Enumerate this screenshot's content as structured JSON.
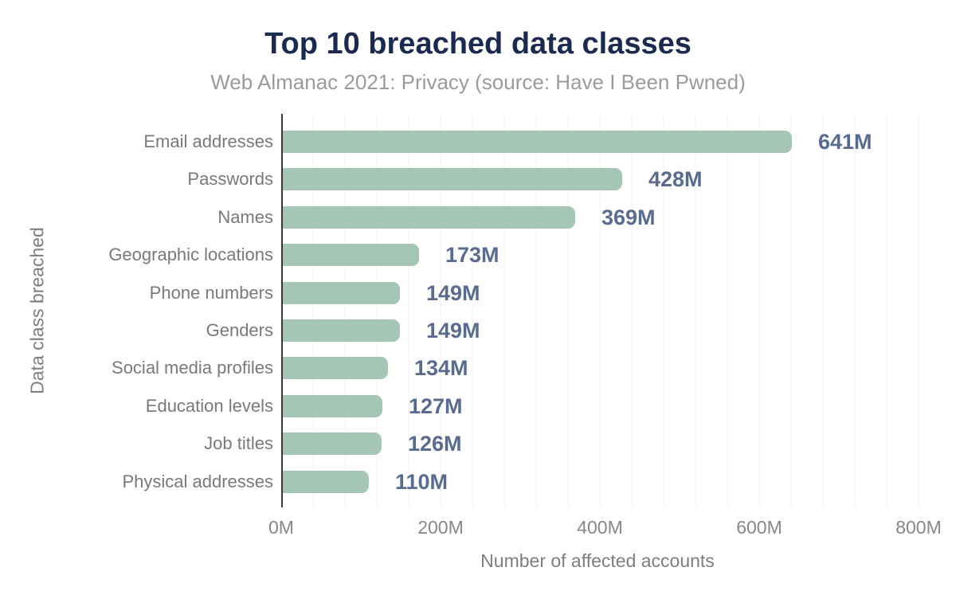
{
  "chart_data": {
    "type": "bar",
    "orientation": "horizontal",
    "title": "Top 10 breached data classes",
    "subtitle": "Web Almanac 2021: Privacy (source: Have I Been Pwned)",
    "categories": [
      "Email addresses",
      "Passwords",
      "Names",
      "Geographic locations",
      "Phone numbers",
      "Genders",
      "Social media profiles",
      "Education levels",
      "Job titles",
      "Physical addresses"
    ],
    "values": [
      641,
      428,
      369,
      173,
      149,
      149,
      134,
      127,
      126,
      110
    ],
    "value_labels": [
      "641M",
      "428M",
      "369M",
      "173M",
      "149M",
      "149M",
      "134M",
      "127M",
      "126M",
      "110M"
    ],
    "xlabel": "Number of affected accounts",
    "ylabel": "Data class breached",
    "x_ticks": [
      {
        "value": 0,
        "label": "0M"
      },
      {
        "value": 200,
        "label": "200M"
      },
      {
        "value": 400,
        "label": "400M"
      },
      {
        "value": 600,
        "label": "600M"
      },
      {
        "value": 800,
        "label": "800M"
      }
    ],
    "xlim": [
      0,
      800
    ],
    "grid": "faint vertical minor gridlines every 40M",
    "legend": "none",
    "colors": {
      "bar": "#a5c6b5",
      "title": "#1b2b4d",
      "subtitle": "#9b9b9b",
      "value_label": "#5a6c8e",
      "category_label": "#77797c",
      "tick_label": "#85878a",
      "axis_line": "#37383a",
      "gridline": "#f2f2f2",
      "background": "#ffffff"
    }
  }
}
